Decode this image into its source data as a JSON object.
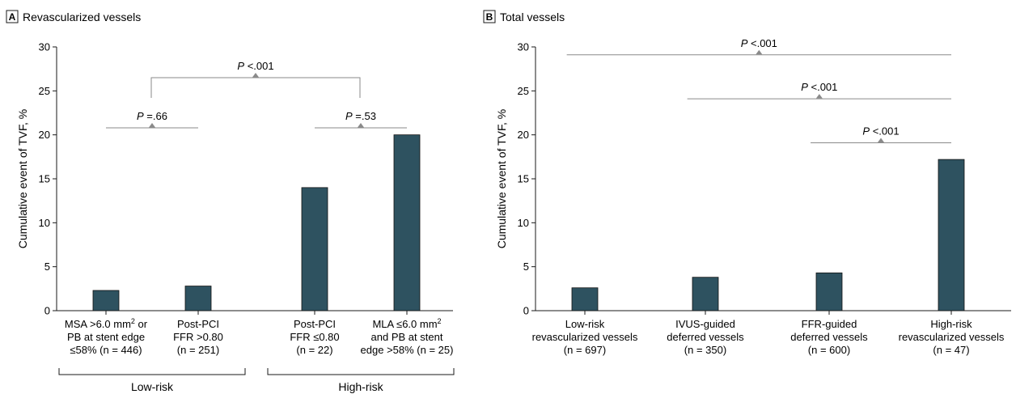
{
  "chart_data": [
    {
      "type": "bar",
      "panel_letter": "A",
      "title": "Revascularized vessels",
      "ylabel": "Cumulative event of TVF, %",
      "ylim": [
        0,
        30
      ],
      "yticks": [
        0,
        5,
        10,
        15,
        20,
        25,
        30
      ],
      "bar_color": "#2e5260",
      "categories": [
        [
          "MSA >6.0 mm",
          "PB at stent edge",
          "≤58% (n = 446)"
        ],
        [
          "Post-PCI",
          "FFR >0.80",
          "(n = 251)"
        ],
        [
          "Post-PCI",
          "FFR ≤0.80",
          "(n = 22)"
        ],
        [
          "MLA ≤6.0 mm",
          "and PB at stent",
          "edge >58% (n = 25)"
        ]
      ],
      "category_extras": [
        {
          "sup": "2",
          "after": "or"
        },
        null,
        null,
        {
          "sup": "2",
          "after": ""
        }
      ],
      "values": [
        2.3,
        2.8,
        14.0,
        20.0
      ],
      "groups": [
        {
          "label": "Low-risk",
          "from": 0,
          "to": 1
        },
        {
          "label": "High-risk",
          "from": 2,
          "to": 3
        }
      ],
      "comparisons": [
        {
          "from": 0,
          "to": 1,
          "y": 20.8,
          "p_label": "P",
          "p_value": " =.66"
        },
        {
          "from": 2,
          "to": 3,
          "y": 20.8,
          "p_label": "P",
          "p_value": " =.53"
        },
        {
          "from": 0.5,
          "to": 2.5,
          "y": 26.5,
          "bracket": true,
          "p_label": "P",
          "p_value": " <.001"
        }
      ]
    },
    {
      "type": "bar",
      "panel_letter": "B",
      "title": "Total vessels",
      "ylabel": "Cumulative event of TVF, %",
      "ylim": [
        0,
        30
      ],
      "yticks": [
        0,
        5,
        10,
        15,
        20,
        25,
        30
      ],
      "bar_color": "#2e5260",
      "categories": [
        [
          "Low-risk",
          "revascularized vessels",
          "(n = 697)"
        ],
        [
          "IVUS-guided",
          "deferred vessels",
          "(n = 350)"
        ],
        [
          "FFR-guided",
          "deferred vessels",
          "(n = 600)"
        ],
        [
          "High-risk",
          "revascularized vessels",
          "(n = 47)"
        ]
      ],
      "category_extras": [
        null,
        null,
        null,
        null
      ],
      "values": [
        2.6,
        3.8,
        4.3,
        17.2
      ],
      "groups": [],
      "comparisons": [
        {
          "from": -0.15,
          "to": 3.0,
          "y": 29.1,
          "p_label": "P",
          "p_value": " <.001"
        },
        {
          "from": 0.85,
          "to": 3.0,
          "y": 24.1,
          "p_label": "P",
          "p_value": " <.001"
        },
        {
          "from": 1.85,
          "to": 3.0,
          "y": 19.1,
          "p_label": "P",
          "p_value": " <.001"
        }
      ]
    }
  ]
}
